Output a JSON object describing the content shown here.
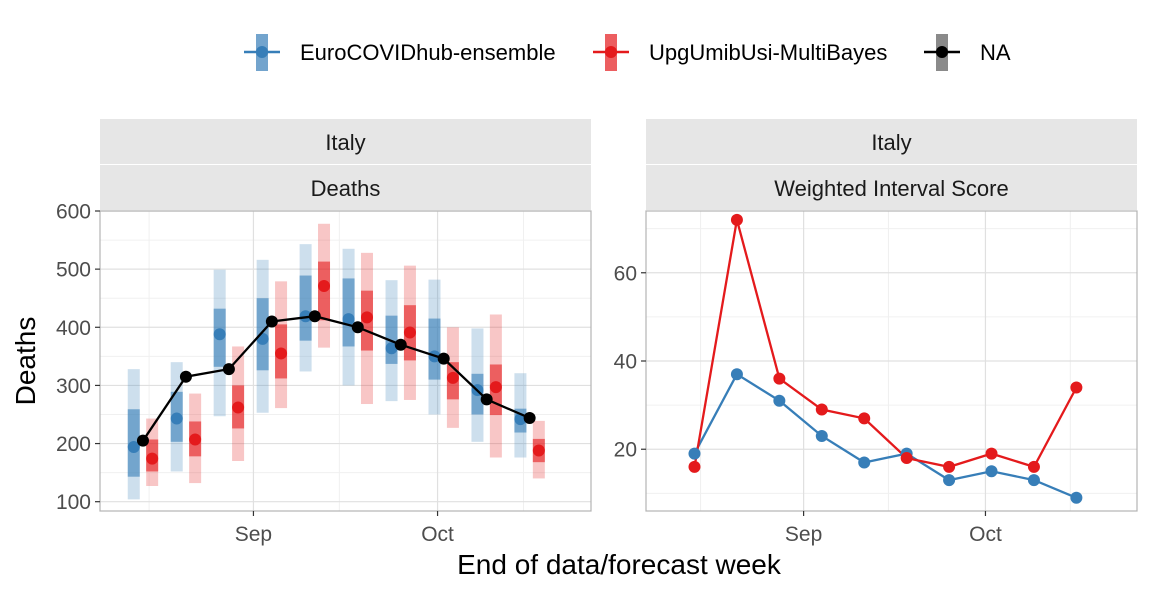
{
  "colors": {
    "ensemble": "#377EB8",
    "multibayes": "#E41A1C",
    "observed": "#000000",
    "legend_na_box": "#595959",
    "strip_fill": "#E6E6E6",
    "grid_major": "#E0E0E0",
    "grid_minor": "#F0F0F0",
    "panel_border": "#B3B3B3"
  },
  "legend": {
    "position": "top",
    "entries": [
      "EuroCOVIDhub-ensemble",
      "UpgUmibUsi-MultiBayes",
      "NA"
    ]
  },
  "x_axis_title": "End of data/forecast week",
  "chart_data": [
    {
      "type": "line",
      "panel": "left",
      "strip_location": "Italy",
      "strip_target": "Deaths",
      "ylabel": "Deaths",
      "x_ticks": [
        "Sep",
        "Oct"
      ],
      "y_ticks": [
        100,
        200,
        300,
        400,
        500,
        600
      ],
      "xlim": [
        "2021-08-07",
        "2021-10-26"
      ],
      "ylim": [
        84,
        600
      ],
      "grid": true,
      "observed": {
        "name": "NA",
        "x": [
          "2021-08-14",
          "2021-08-21",
          "2021-08-28",
          "2021-09-04",
          "2021-09-11",
          "2021-09-18",
          "2021-09-25",
          "2021-10-02",
          "2021-10-09",
          "2021-10-16"
        ],
        "y": [
          205,
          315,
          328,
          410,
          419,
          400,
          370,
          346,
          276,
          244
        ]
      },
      "forecasts": [
        {
          "name": "EuroCOVIDhub-ensemble",
          "x": [
            "2021-08-14",
            "2021-08-21",
            "2021-08-28",
            "2021-09-04",
            "2021-09-11",
            "2021-09-18",
            "2021-09-25",
            "2021-10-02",
            "2021-10-09",
            "2021-10-16"
          ],
          "median": [
            194,
            243,
            388,
            380,
            419,
            414,
            364,
            350,
            292,
            242
          ],
          "lower_50": [
            143,
            203,
            332,
            326,
            377,
            367,
            337,
            310,
            250,
            219
          ],
          "upper_50": [
            259,
            289,
            432,
            450,
            489,
            484,
            420,
            415,
            320,
            260
          ],
          "lower_90": [
            104,
            152,
            247,
            253,
            324,
            300,
            273,
            250,
            203,
            176
          ],
          "upper_90": [
            328,
            340,
            499,
            516,
            543,
            535,
            481,
            482,
            398,
            321
          ]
        },
        {
          "name": "UpgUmibUsi-MultiBayes",
          "x": [
            "2021-08-14",
            "2021-08-21",
            "2021-08-28",
            "2021-09-04",
            "2021-09-11",
            "2021-09-18",
            "2021-09-25",
            "2021-10-02",
            "2021-10-09",
            "2021-10-16"
          ],
          "median": [
            174,
            207,
            262,
            355,
            471,
            417,
            391,
            313,
            297,
            188
          ],
          "lower_50": [
            152,
            178,
            226,
            312,
            412,
            360,
            343,
            276,
            249,
            168
          ],
          "upper_50": [
            207,
            238,
            300,
            405,
            513,
            463,
            438,
            340,
            336,
            208
          ],
          "lower_90": [
            127,
            132,
            170,
            261,
            365,
            268,
            275,
            227,
            176,
            140
          ],
          "upper_90": [
            243,
            286,
            367,
            479,
            578,
            528,
            506,
            400,
            422,
            239
          ]
        }
      ]
    },
    {
      "type": "line",
      "panel": "right",
      "strip_location": "Italy",
      "strip_target": "Weighted Interval Score",
      "x_ticks": [
        "Sep",
        "Oct"
      ],
      "y_ticks": [
        20,
        40,
        60
      ],
      "xlim": [
        "2021-08-06",
        "2021-10-26"
      ],
      "ylim": [
        6,
        74
      ],
      "grid": true,
      "series": [
        {
          "name": "EuroCOVIDhub-ensemble",
          "x": [
            "2021-08-14",
            "2021-08-21",
            "2021-08-28",
            "2021-09-04",
            "2021-09-11",
            "2021-09-18",
            "2021-09-25",
            "2021-10-02",
            "2021-10-09",
            "2021-10-16"
          ],
          "values": [
            19,
            37,
            31,
            23,
            17,
            19,
            13,
            15,
            13,
            9
          ]
        },
        {
          "name": "UpgUmibUsi-MultiBayes",
          "x": [
            "2021-08-14",
            "2021-08-21",
            "2021-08-28",
            "2021-09-04",
            "2021-09-11",
            "2021-09-18",
            "2021-09-25",
            "2021-10-02",
            "2021-10-09",
            "2021-10-16"
          ],
          "values": [
            16,
            72,
            36,
            29,
            27,
            18,
            16,
            19,
            16,
            34
          ]
        }
      ]
    }
  ]
}
